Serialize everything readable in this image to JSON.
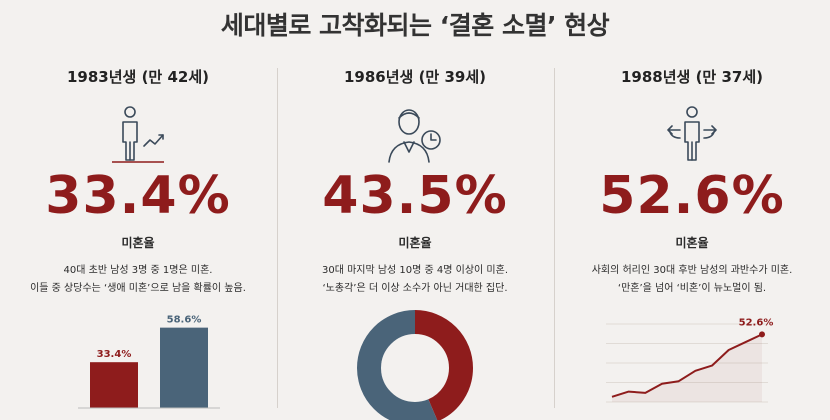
{
  "title": "세대별로 고착화되는 ‘결혼 소멸’ 현상",
  "colors": {
    "accent": "#8e1c1c",
    "blue": "#4a6479",
    "bg": "#f3f1ef"
  },
  "panels": [
    {
      "generation": "1983년생 (만 42세)",
      "icon": "person-rising-arrow-icon",
      "percent": "33.4%",
      "label": "미혼율",
      "desc_line1": "40대 초반 남성 3명 중 1명은 미혼.",
      "desc_line2": "이들 중 상당수는 ‘생애 미혼’으로 남을 확률이 높음."
    },
    {
      "generation": "1986년생 (만 39세)",
      "icon": "person-clock-icon",
      "percent": "43.5%",
      "label": "미혼율",
      "desc_line1": "30대 마지막 남성 10명 중 4명 이상이 미혼.",
      "desc_line2": "‘노총각’은 더 이상 소수가 아닌 거대한 집단."
    },
    {
      "generation": "1988년생 (만 37세)",
      "icon": "person-crossroads-arrows-icon",
      "percent": "52.6%",
      "label": "미혼율",
      "desc_line1": "사회의 허리인 30대 후반 남성의 과반수가 미혼.",
      "desc_line2": "‘만혼’을 넘어 ‘비혼’이 뉴노멀이 됨."
    }
  ],
  "chart_data": [
    {
      "type": "bar",
      "categories": [
        "",
        ""
      ],
      "values": [
        33.4,
        58.6
      ],
      "value_labels": [
        "33.4%",
        "58.6%"
      ],
      "colors": [
        "#8e1c1c",
        "#4a6479"
      ],
      "ylim": [
        0,
        70
      ]
    },
    {
      "type": "pie",
      "donut": true,
      "values": [
        43.5,
        56.5
      ],
      "colors": [
        "#8e1c1c",
        "#4a6479"
      ]
    },
    {
      "type": "line",
      "values": [
        2,
        4,
        3.5,
        7,
        8,
        12,
        14,
        20,
        23,
        26
      ],
      "end_label": "52.6%",
      "color": "#8e1c1c",
      "ylim": [
        0,
        30
      ]
    }
  ]
}
